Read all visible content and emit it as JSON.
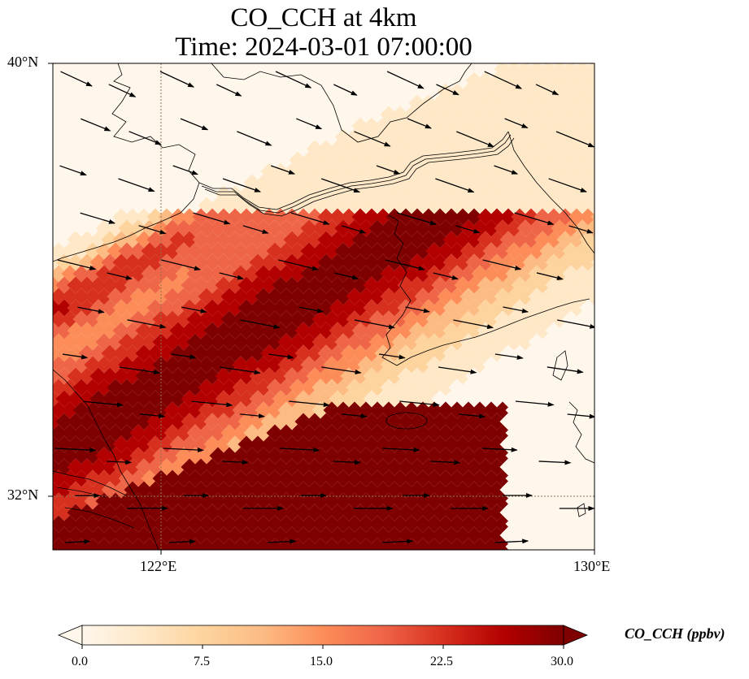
{
  "title": {
    "line1": "CO_CCH at 4km",
    "line2": "Time: 2024-03-01 07:00:00"
  },
  "axes": {
    "lat_labels": [
      "40°N",
      "32°N"
    ],
    "lon_labels": [
      "122°E",
      "130°E"
    ],
    "lon_range": [
      120,
      130
    ],
    "lat_range": [
      31,
      40
    ]
  },
  "colorbar": {
    "label": "CO_CCH (ppbv)",
    "ticks": [
      "0.0",
      "7.5",
      "15.0",
      "22.5",
      "30.0"
    ],
    "vmin": 0,
    "vmax": 30,
    "extend": "both",
    "colormap": "OrRd",
    "colors": [
      "#fff7ec",
      "#fee8c8",
      "#fdd49e",
      "#fdbb84",
      "#fc8d59",
      "#ef6548",
      "#d7301f",
      "#b30000",
      "#7f0000"
    ]
  },
  "legend_colors": {
    "coast": "#000000",
    "gridline": "#8b7355",
    "arrow": "#000000"
  }
}
